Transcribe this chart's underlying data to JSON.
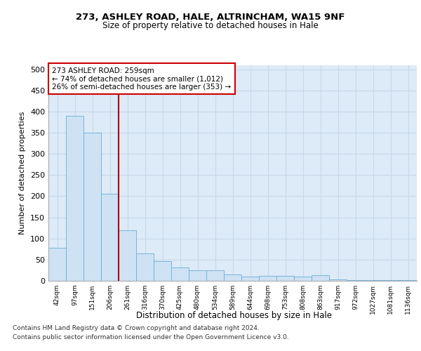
{
  "title1": "273, ASHLEY ROAD, HALE, ALTRINCHAM, WA15 9NF",
  "title2": "Size of property relative to detached houses in Hale",
  "xlabel": "Distribution of detached houses by size in Hale",
  "ylabel": "Number of detached properties",
  "bar_labels": [
    "42sqm",
    "97sqm",
    "151sqm",
    "206sqm",
    "261sqm",
    "316sqm",
    "370sqm",
    "425sqm",
    "480sqm",
    "534sqm",
    "589sqm",
    "644sqm",
    "698sqm",
    "753sqm",
    "808sqm",
    "863sqm",
    "917sqm",
    "972sqm",
    "1027sqm",
    "1081sqm",
    "1136sqm"
  ],
  "bar_values": [
    78,
    390,
    350,
    205,
    120,
    65,
    47,
    32,
    25,
    25,
    15,
    10,
    12,
    12,
    10,
    13,
    3,
    2,
    2,
    1,
    1
  ],
  "bar_color": "#cfe2f3",
  "bar_edge_color": "#6aaed6",
  "grid_color": "#c8d8e8",
  "background_color": "#ddeaf7",
  "vline_color": "#aa0000",
  "annotation_text": "273 ASHLEY ROAD: 259sqm\n← 74% of detached houses are smaller (1,012)\n26% of semi-detached houses are larger (353) →",
  "annotation_box_color": "#ffffff",
  "annotation_box_edge": "#cc0000",
  "footnote1": "Contains HM Land Registry data © Crown copyright and database right 2024.",
  "footnote2": "Contains public sector information licensed under the Open Government Licence v3.0.",
  "ylim": [
    0,
    510
  ],
  "yticks": [
    0,
    50,
    100,
    150,
    200,
    250,
    300,
    350,
    400,
    450,
    500
  ]
}
